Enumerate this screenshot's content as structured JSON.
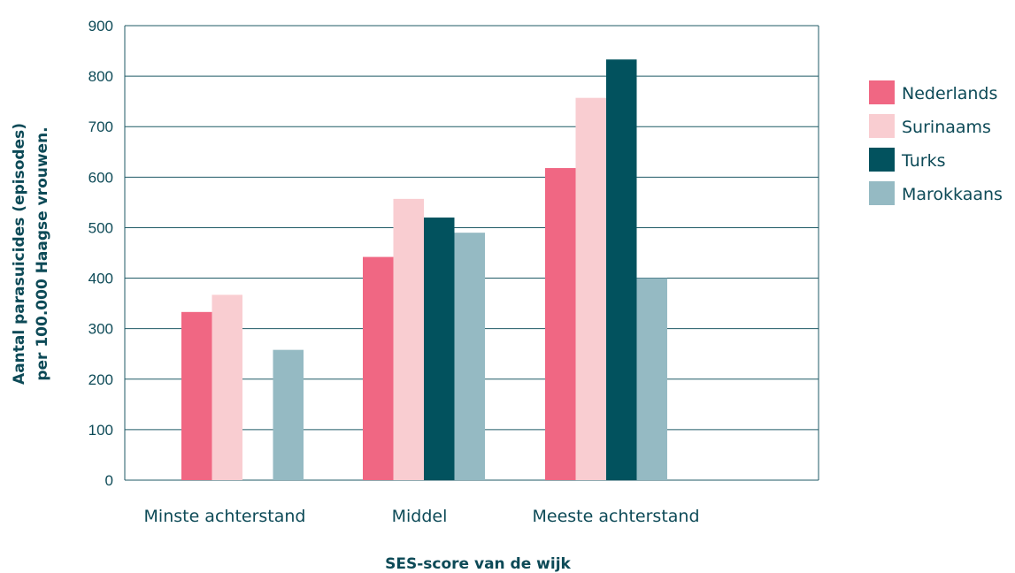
{
  "chart_data": {
    "type": "bar",
    "categories": [
      "Minste achterstand",
      "Middel",
      "Meeste achterstand"
    ],
    "series": [
      {
        "name": "Nederlands",
        "values": [
          333,
          442,
          618
        ]
      },
      {
        "name": "Surinaams",
        "values": [
          367,
          557,
          757
        ]
      },
      {
        "name": "Turks",
        "values": [
          0,
          520,
          833
        ]
      },
      {
        "name": "Marokkaans",
        "values": [
          258,
          490,
          400
        ]
      }
    ],
    "xlabel": "SES-score van de wijk",
    "ylabel_line1": "Aantal parasuicides (episodes)",
    "ylabel_line2": "per 100.000 Haagse vrouwen.",
    "ylim": [
      0,
      900
    ],
    "yticks": [
      0,
      100,
      200,
      300,
      400,
      500,
      600,
      700,
      800,
      900
    ],
    "grid": true,
    "legend_position": "right",
    "colors": {
      "Nederlands": "#f06783",
      "Surinaams": "#f9cdd1",
      "Turks": "#02525e",
      "Marokkaans": "#95bac3",
      "text": "#0d4a57",
      "grid": "#1f5a66"
    }
  }
}
